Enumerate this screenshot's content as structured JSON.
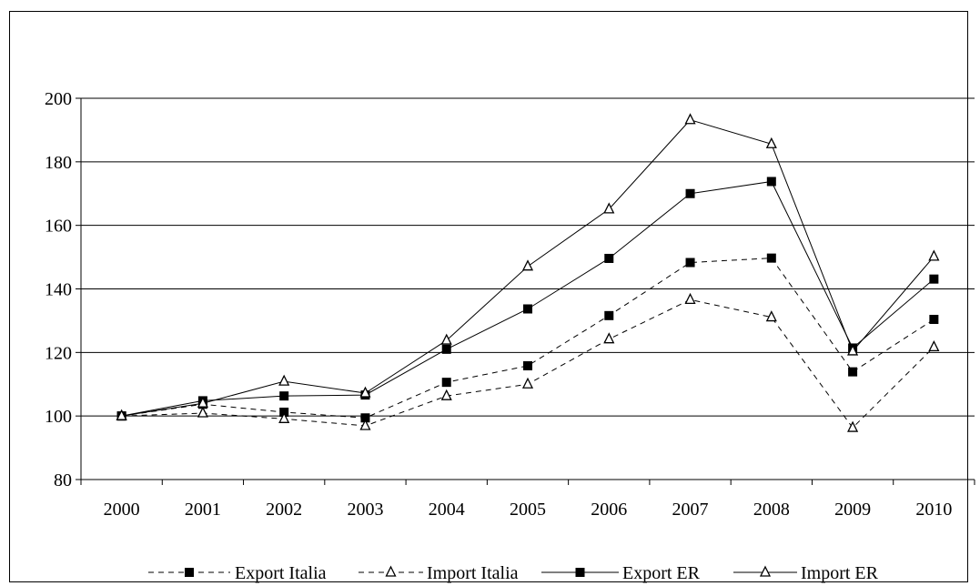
{
  "chart_data": {
    "type": "line",
    "title": "",
    "xlabel": "",
    "ylabel": "",
    "categories": [
      "2000",
      "2001",
      "2002",
      "2003",
      "2004",
      "2005",
      "2006",
      "2007",
      "2008",
      "2009",
      "2010"
    ],
    "ylim": [
      80,
      200
    ],
    "yticks": [
      80,
      100,
      120,
      140,
      160,
      180,
      200
    ],
    "grid": "horizontal",
    "legend_position": "bottom",
    "series": [
      {
        "name": "Export Italia",
        "style": "dashed",
        "marker": "square",
        "values": [
          100,
          103.7,
          101.2,
          99.4,
          110.6,
          115.8,
          131.6,
          148.3,
          149.7,
          113.9,
          130.4
        ]
      },
      {
        "name": "Import Italia",
        "style": "dashed",
        "marker": "triangle",
        "values": [
          100,
          100.9,
          99.1,
          96.9,
          106.3,
          110.0,
          124.2,
          136.6,
          131.1,
          96.3,
          121.7
        ]
      },
      {
        "name": "Export ER",
        "style": "solid",
        "marker": "square",
        "values": [
          100,
          104.8,
          106.3,
          106.6,
          121.0,
          133.7,
          149.6,
          170.0,
          173.8,
          121.4,
          143.1
        ]
      },
      {
        "name": "Import ER",
        "style": "solid",
        "marker": "triangle",
        "values": [
          100,
          104.0,
          110.9,
          107.2,
          123.8,
          147.1,
          165.1,
          193.2,
          185.6,
          120.4,
          150.2
        ]
      }
    ]
  }
}
